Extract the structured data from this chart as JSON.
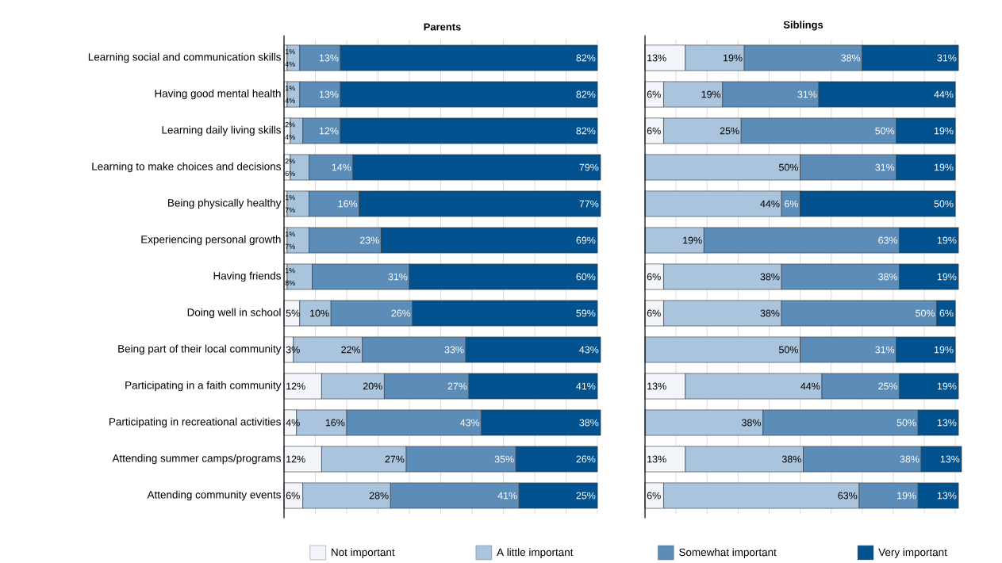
{
  "chart_data": [
    {
      "type": "bar",
      "orientation": "horizontal",
      "stacked": true,
      "title": "Parents",
      "tick_labels": "y",
      "grid": "x",
      "legend": "bottom",
      "categories": [
        "Learning social and communication skills",
        "Having good mental health",
        "Learning daily living skills",
        "Learning to make choices and decisions",
        "Being physically healthy",
        "Experiencing personal growth",
        "Having friends",
        "Doing well in school",
        "Being part of their local community",
        "Participating in a faith community",
        "Participating in recreational activities",
        "Attending summer camps/programs",
        "Attending community events"
      ],
      "series": [
        {
          "name": "Not important",
          "color": "#f2f5f9",
          "values": [
            1,
            1,
            2,
            2,
            1,
            1,
            1,
            5,
            3,
            12,
            4,
            12,
            6
          ],
          "value_labels": [
            "1%",
            "1%",
            "2%",
            "2%",
            "1%",
            "1%",
            "1%",
            "5%",
            "3%",
            "12%",
            "4%",
            "12%",
            "6%"
          ]
        },
        {
          "name": "A little important",
          "color": "#a9c4dc",
          "values": [
            4,
            4,
            4,
            6,
            7,
            7,
            8,
            10,
            22,
            20,
            16,
            27,
            28
          ],
          "value_labels": [
            "4%",
            "4%",
            "4%",
            "6%",
            "7%",
            "7%",
            "8%",
            "10%",
            "22%",
            "20%",
            "16%",
            "27%",
            "28%"
          ]
        },
        {
          "color": "#5b8db8",
          "values": [
            13,
            13,
            12,
            14,
            16,
            23,
            31,
            26,
            33,
            27,
            43,
            35,
            41
          ],
          "value_labels": [
            "13%",
            "13%",
            "12%",
            "14%",
            "16%",
            "23%",
            "31%",
            "26%",
            "33%",
            "27%",
            "43%",
            "35%",
            "41%"
          ]
        },
        {
          "color": "#02528f",
          "values": [
            82,
            82,
            82,
            79,
            77,
            69,
            60,
            59,
            43,
            41,
            38,
            26,
            25
          ],
          "value_labels": [
            "82%",
            "82%",
            "82%",
            "79%",
            "77%",
            "69%",
            "60%",
            "59%",
            "43%",
            "41%",
            "38%",
            "26%",
            "25%"
          ]
        }
      ]
    },
    {
      "type": "bar",
      "orientation": "horizontal",
      "stacked": true,
      "title": "Siblings",
      "tick_labels": false,
      "grid": "x",
      "legend": "bottom",
      "categories": [
        null,
        null,
        null,
        null,
        null,
        null,
        null,
        null,
        null,
        null,
        null,
        null,
        null
      ],
      "series": [
        {
          "color": "#f2f5f9",
          "values": [
            13,
            6,
            6,
            null,
            null,
            null,
            6,
            6,
            null,
            13,
            null,
            13,
            6
          ],
          "value_labels": [
            "13%",
            "6%",
            "6%",
            null,
            null,
            null,
            "6%",
            "6%",
            null,
            "13%",
            null,
            "13%",
            "6%"
          ]
        },
        {
          "color": "#a9c4dc",
          "values": [
            19,
            19,
            25,
            50,
            44,
            19,
            38,
            38,
            50,
            44,
            38,
            38,
            63
          ],
          "value_labels": [
            "19%",
            "19%",
            "25%",
            "50%",
            "44%",
            "19%",
            "38%",
            "38%",
            "50%",
            "44%",
            "38%",
            "38%",
            "63%"
          ]
        },
        {
          "name": "Somewhat important",
          "color": "#5b8db8",
          "values": [
            38,
            31,
            50,
            31,
            6,
            63,
            38,
            50,
            31,
            25,
            50,
            38,
            19
          ],
          "value_labels": [
            "38%",
            "31%",
            "50%",
            "31%",
            "6%",
            "63%",
            "38%",
            "50%",
            "31%",
            "25%",
            "50%",
            "38%",
            "19%"
          ]
        },
        {
          "name": "Very important",
          "color": "#02528f",
          "values": [
            31,
            44,
            19,
            19,
            50,
            19,
            19,
            6,
            19,
            19,
            13,
            13,
            13
          ],
          "value_labels": [
            "31%",
            "44%",
            "19%",
            "19%",
            "50%",
            "19%",
            "19%",
            "6%",
            "19%",
            "19%",
            "13%",
            "13%",
            "13%"
          ]
        }
      ]
    }
  ]
}
